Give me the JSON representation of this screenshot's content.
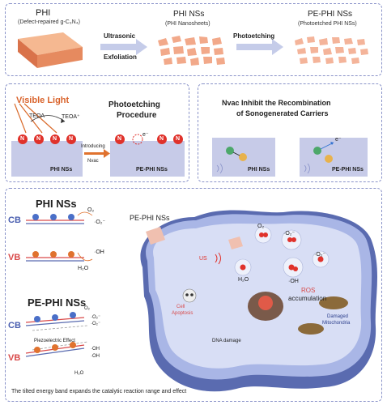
{
  "top": {
    "phi_title": "PHI",
    "phi_sub": "(Defect-repaired g-C₃N₄)",
    "step1_line1": "Ultrasonic",
    "step1_line2": "Exfoliation",
    "nss_title": "PHI NSs",
    "nss_sub": "(PHI Nanosheets)",
    "step2": "Photoetching",
    "pe_title": "PE-PHI NSs",
    "pe_sub": "(Photoetched PHI NSs)"
  },
  "mid_left": {
    "visible_light": "Visible Light",
    "teoa": "TEOA",
    "teoa_plus": "TEOA⁺",
    "title_line1": "Photoetching",
    "title_line2": "Procedure",
    "introducing": "Introducing",
    "nvac": "Nvac",
    "n_atom": "N",
    "electron": "e⁻",
    "label_left": "PHI NSs",
    "label_right": "PE-PHI NSs"
  },
  "mid_right": {
    "title_line1": "Nvac Inhibit the Recombination",
    "title_line2": "of Sonogenerated Carriers",
    "label_left": "PHI NSs",
    "label_right": "PE-PHI NSs",
    "us": "US",
    "electron": "e⁻",
    "hole": "h⁺"
  },
  "bottom": {
    "phi_title": "PHI NSs",
    "cb": "CB",
    "vb": "VB",
    "o2": "O₂",
    "superoxide": "·O₂⁻",
    "hydroxyl": "·OH",
    "h2o": "H₂O",
    "e": "e⁻",
    "h": "h⁺",
    "pe_title": "PE-PHI NSs",
    "piezo": "Piezoelectric Effect",
    "caption": "The tilted energy band expands the catalytic reaction range and effect",
    "cell_pe": "PE-PHI NSs",
    "cell_o2": "O₂",
    "cell_h2o": "H₂O",
    "cell_us": "US",
    "cell_superoxide": "·O₂⁻",
    "cell_oh": "·OH",
    "ros_line1": "ROS",
    "ros_line2": "accumulation",
    "apoptosis_line1": "Cell",
    "apoptosis_line2": "Apoptosis",
    "damaged_line1": "Damaged",
    "damaged_line2": "Mitochondria",
    "dna": "DNA damage"
  }
}
